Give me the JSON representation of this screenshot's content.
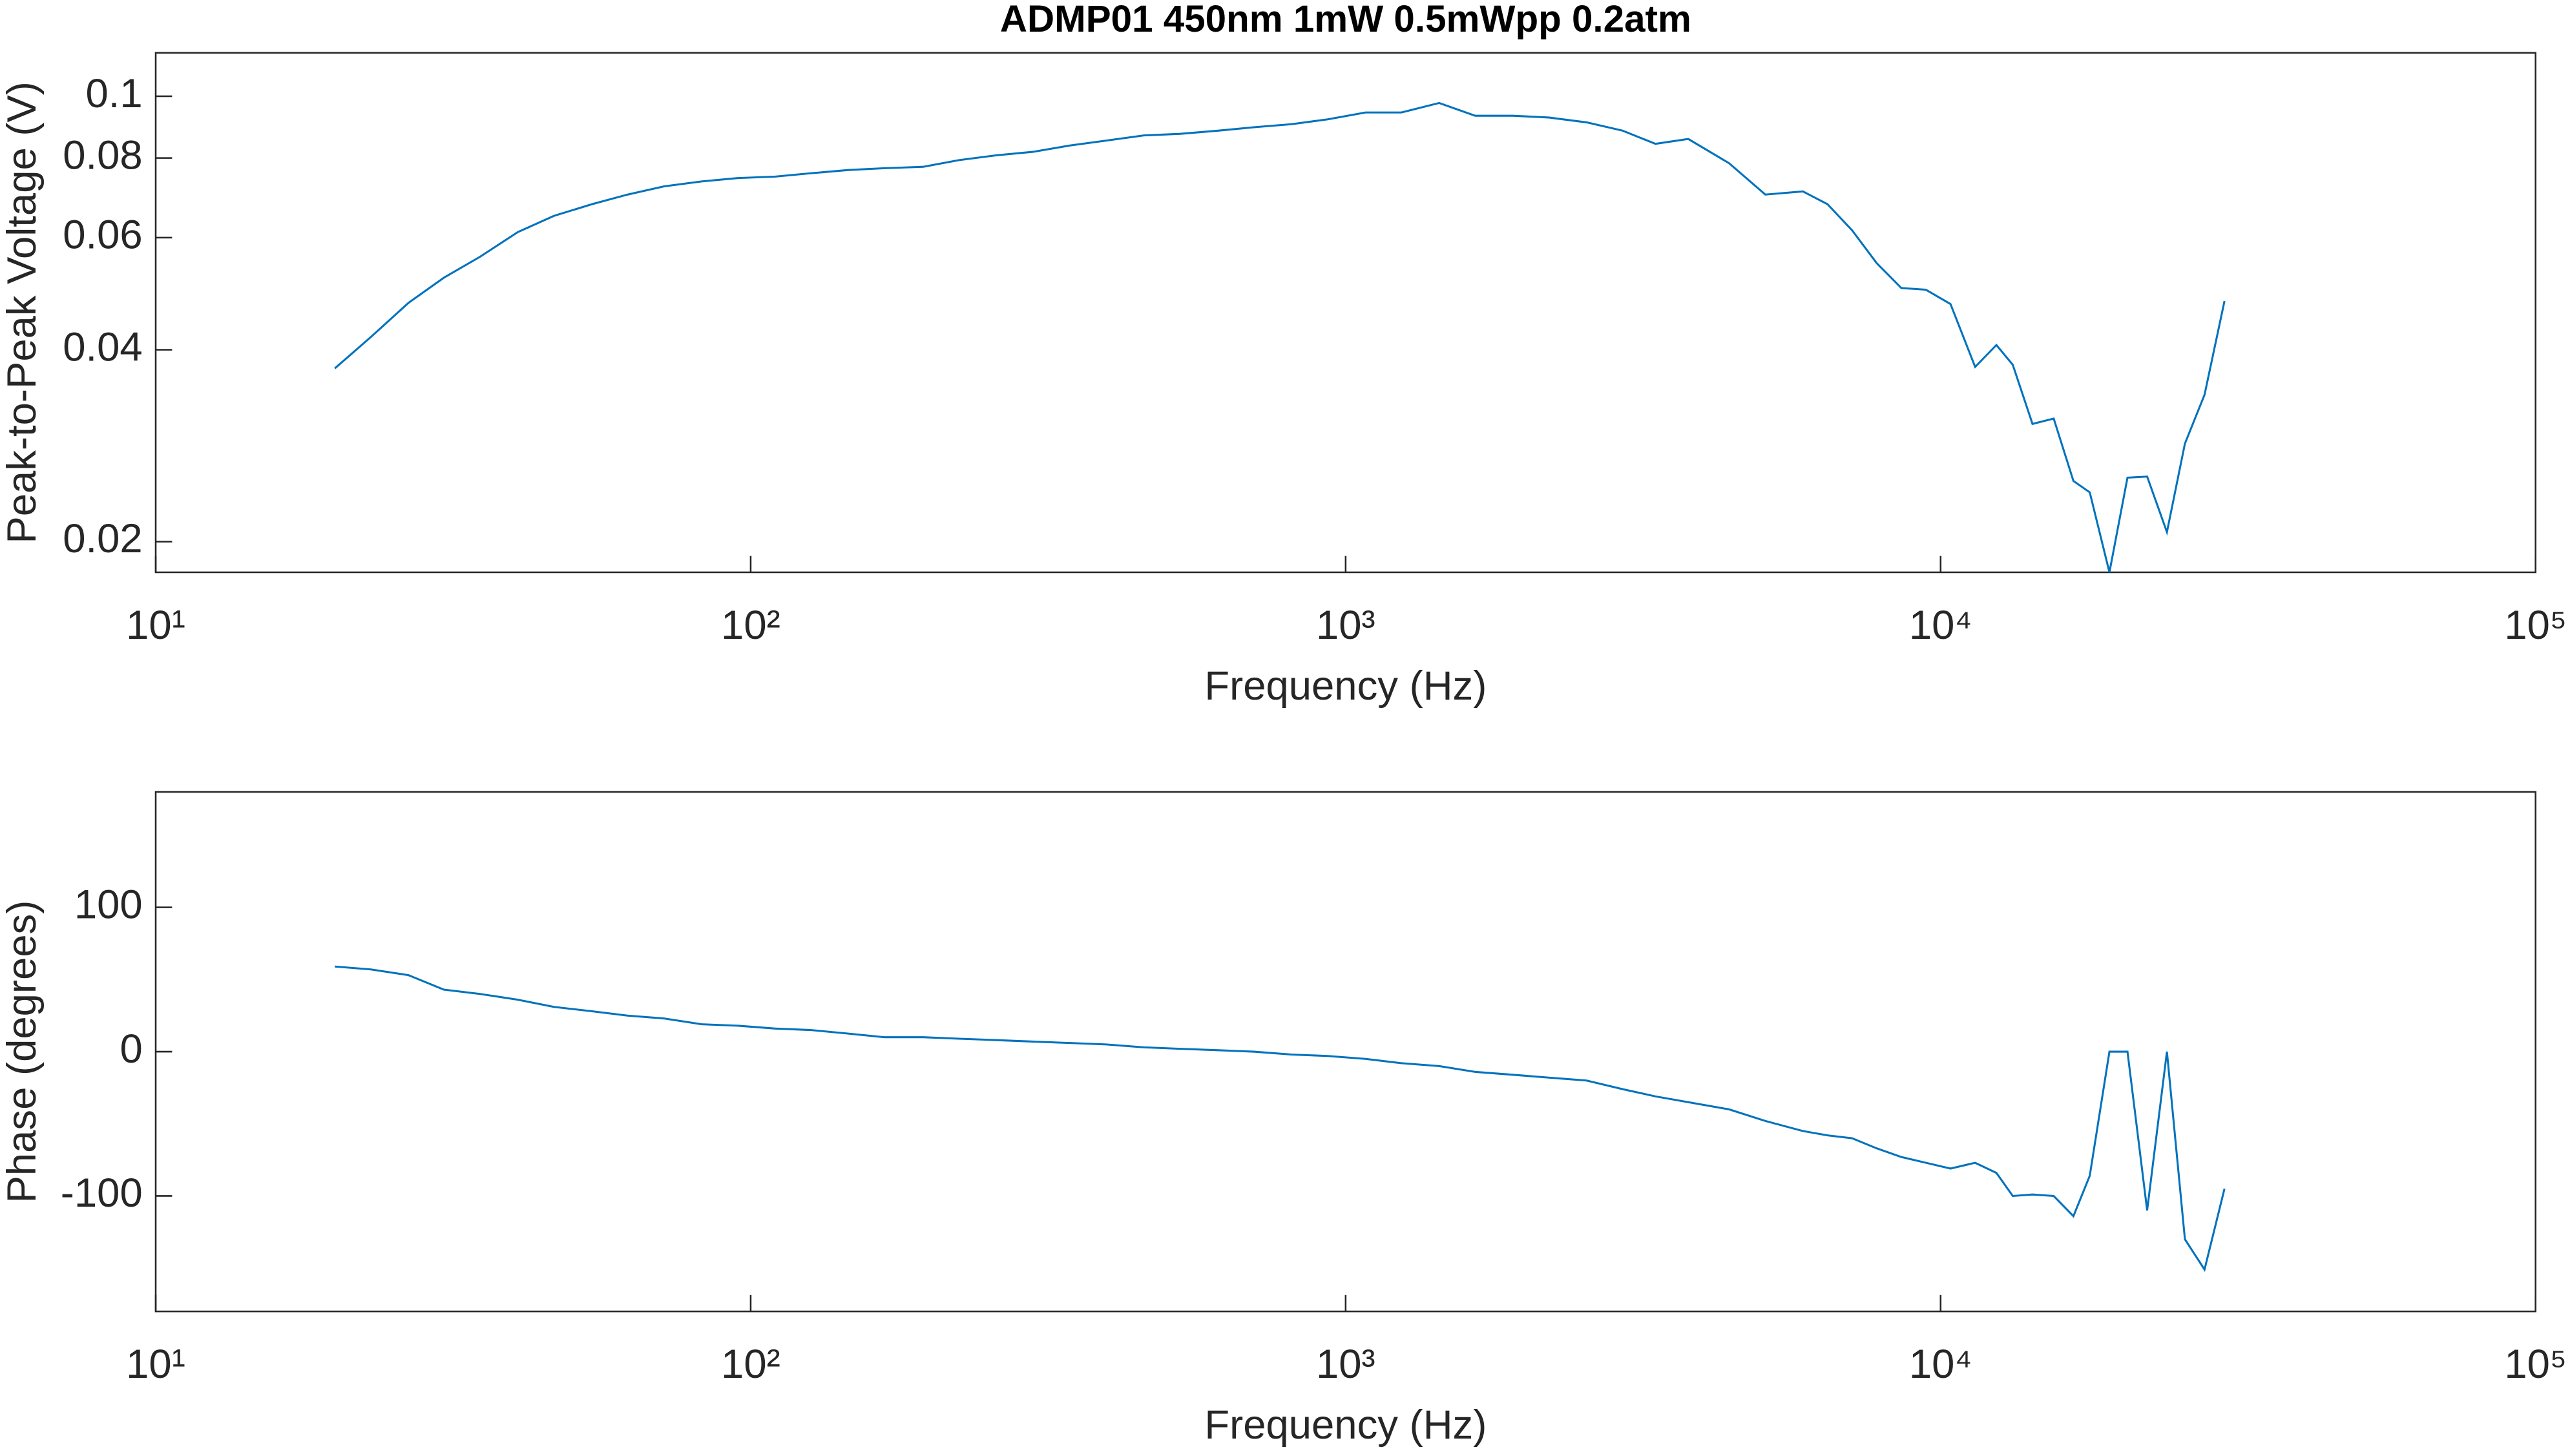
{
  "chart_data": [
    {
      "type": "line",
      "title": "ADMP01 450nm 1mW 0.5mWpp 0.2atm",
      "xlabel": "Frequency (Hz)",
      "ylabel": "Peak-to-Peak Voltage (V)",
      "xscale": "log",
      "yscale": "log",
      "color": "#0072bd",
      "x": [
        20,
        23,
        26.6,
        30.5,
        35.1,
        40.6,
        46.7,
        54.1,
        62.1,
        71.5,
        82.7,
        95.1,
        110,
        126,
        146,
        168,
        195,
        224,
        259,
        298,
        344,
        396,
        458,
        527,
        610,
        701,
        811,
        933,
        1080,
        1241,
        1436,
        1651,
        1910,
        2196,
        2541,
        2922,
        3317,
        3766,
        4411,
        5074,
        5870,
        6455,
        7100,
        7810,
        8590,
        9446,
        10390,
        11430,
        12410,
        13220,
        14270,
        15490,
        16720,
        17810,
        19220,
        20610,
        22240,
        24010,
        25740,
        27770,
        30000
      ],
      "values": [
        0.0374,
        0.0419,
        0.0474,
        0.0519,
        0.056,
        0.0612,
        0.0649,
        0.0677,
        0.0701,
        0.0722,
        0.0735,
        0.0744,
        0.0748,
        0.0757,
        0.0766,
        0.0771,
        0.0775,
        0.0794,
        0.0808,
        0.0818,
        0.0837,
        0.0852,
        0.0868,
        0.0873,
        0.0883,
        0.0894,
        0.0904,
        0.092,
        0.0943,
        0.0943,
        0.0976,
        0.0932,
        0.0932,
        0.0926,
        0.091,
        0.0883,
        0.0842,
        0.0857,
        0.0785,
        0.0701,
        0.0709,
        0.0677,
        0.0616,
        0.0547,
        0.05,
        0.0497,
        0.0472,
        0.0376,
        0.0407,
        0.0379,
        0.0306,
        0.0312,
        0.0249,
        0.0239,
        0.0179,
        0.0252,
        0.0253,
        0.0207,
        0.0285,
        0.034,
        0.0477
      ],
      "xlim": [
        10,
        100000
      ],
      "xticks": [
        {
          "value": 10,
          "label": "10¹"
        },
        {
          "value": 100,
          "label": "10²"
        },
        {
          "value": 1000,
          "label": "10³"
        },
        {
          "value": 10000,
          "label": "10⁴"
        },
        {
          "value": 100000,
          "label": "10⁵"
        }
      ],
      "ylim": [
        0.0179,
        0.117
      ],
      "yticks": [
        0.02,
        0.04,
        0.06,
        0.08,
        0.1
      ]
    },
    {
      "type": "line",
      "xlabel": "Frequency (Hz)",
      "ylabel": "Phase (degrees)",
      "xscale": "log",
      "color": "#0072bd",
      "x": [
        20,
        23,
        26.6,
        30.5,
        35.1,
        40.6,
        46.7,
        54.1,
        62.1,
        71.5,
        82.7,
        95.1,
        110,
        126,
        146,
        168,
        195,
        224,
        259,
        298,
        344,
        396,
        458,
        527,
        610,
        701,
        811,
        933,
        1080,
        1241,
        1436,
        1651,
        1910,
        2196,
        2541,
        2922,
        3317,
        3766,
        4411,
        5074,
        5870,
        6455,
        7100,
        7810,
        8590,
        9446,
        10390,
        11430,
        12410,
        13220,
        14270,
        15490,
        16720,
        17810,
        19220,
        20610,
        22240,
        24010,
        25740,
        27770,
        30000
      ],
      "values": [
        59,
        57,
        53,
        43,
        40,
        36,
        31,
        28,
        25,
        23,
        19,
        18,
        16,
        15,
        12.5,
        10,
        10,
        9,
        8,
        7,
        6,
        5,
        3,
        2,
        1,
        0,
        -2,
        -3,
        -5,
        -8,
        -10,
        -14,
        -16,
        -18,
        -20,
        -26,
        -31,
        -35,
        -40,
        -48,
        -55,
        -58,
        -60,
        -67,
        -73,
        -77,
        -81,
        -77,
        -84,
        -100,
        -99,
        -100,
        -114,
        -86,
        0,
        0,
        -110,
        0,
        -130,
        -151,
        -95
      ],
      "xlim": [
        10,
        100000
      ],
      "xticks": [
        {
          "value": 10,
          "label": "10¹"
        },
        {
          "value": 100,
          "label": "10²"
        },
        {
          "value": 1000,
          "label": "10³"
        },
        {
          "value": 10000,
          "label": "10⁴"
        },
        {
          "value": 100000,
          "label": "10⁵"
        }
      ],
      "ylim": [
        -180,
        180
      ],
      "yticks": [
        -100,
        0,
        100
      ]
    }
  ]
}
